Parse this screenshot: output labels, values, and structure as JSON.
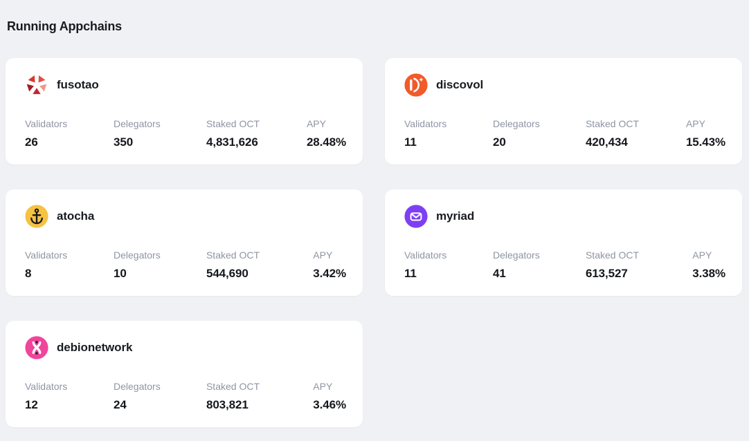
{
  "page": {
    "title": "Running Appchains",
    "background_color": "#f0f1f5",
    "card_color": "#ffffff"
  },
  "labels": {
    "validators": "Validators",
    "delegators": "Delegators",
    "staked": "Staked OCT",
    "apy": "APY"
  },
  "appchains": [
    {
      "name": "fusotao",
      "icon": "fusotao-flower-icon",
      "icon_color": "#d8372d",
      "validators": "26",
      "delegators": "350",
      "staked_oct": "4,831,626",
      "apy": "28.48%"
    },
    {
      "name": "discovol",
      "icon": "discovol-d-icon",
      "icon_color": "#f15a29",
      "validators": "11",
      "delegators": "20",
      "staked_oct": "420,434",
      "apy": "15.43%"
    },
    {
      "name": "atocha",
      "icon": "anchor-icon",
      "icon_color": "#f5c242",
      "validators": "8",
      "delegators": "10",
      "staked_oct": "544,690",
      "apy": "3.42%"
    },
    {
      "name": "myriad",
      "icon": "myriad-envelope-icon",
      "icon_color": "#7e3ff2",
      "validators": "11",
      "delegators": "41",
      "staked_oct": "613,527",
      "apy": "3.38%"
    },
    {
      "name": "debionetwork",
      "icon": "dna-helix-icon",
      "icon_color": "#f0459c",
      "validators": "12",
      "delegators": "24",
      "staked_oct": "803,821",
      "apy": "3.46%"
    }
  ]
}
